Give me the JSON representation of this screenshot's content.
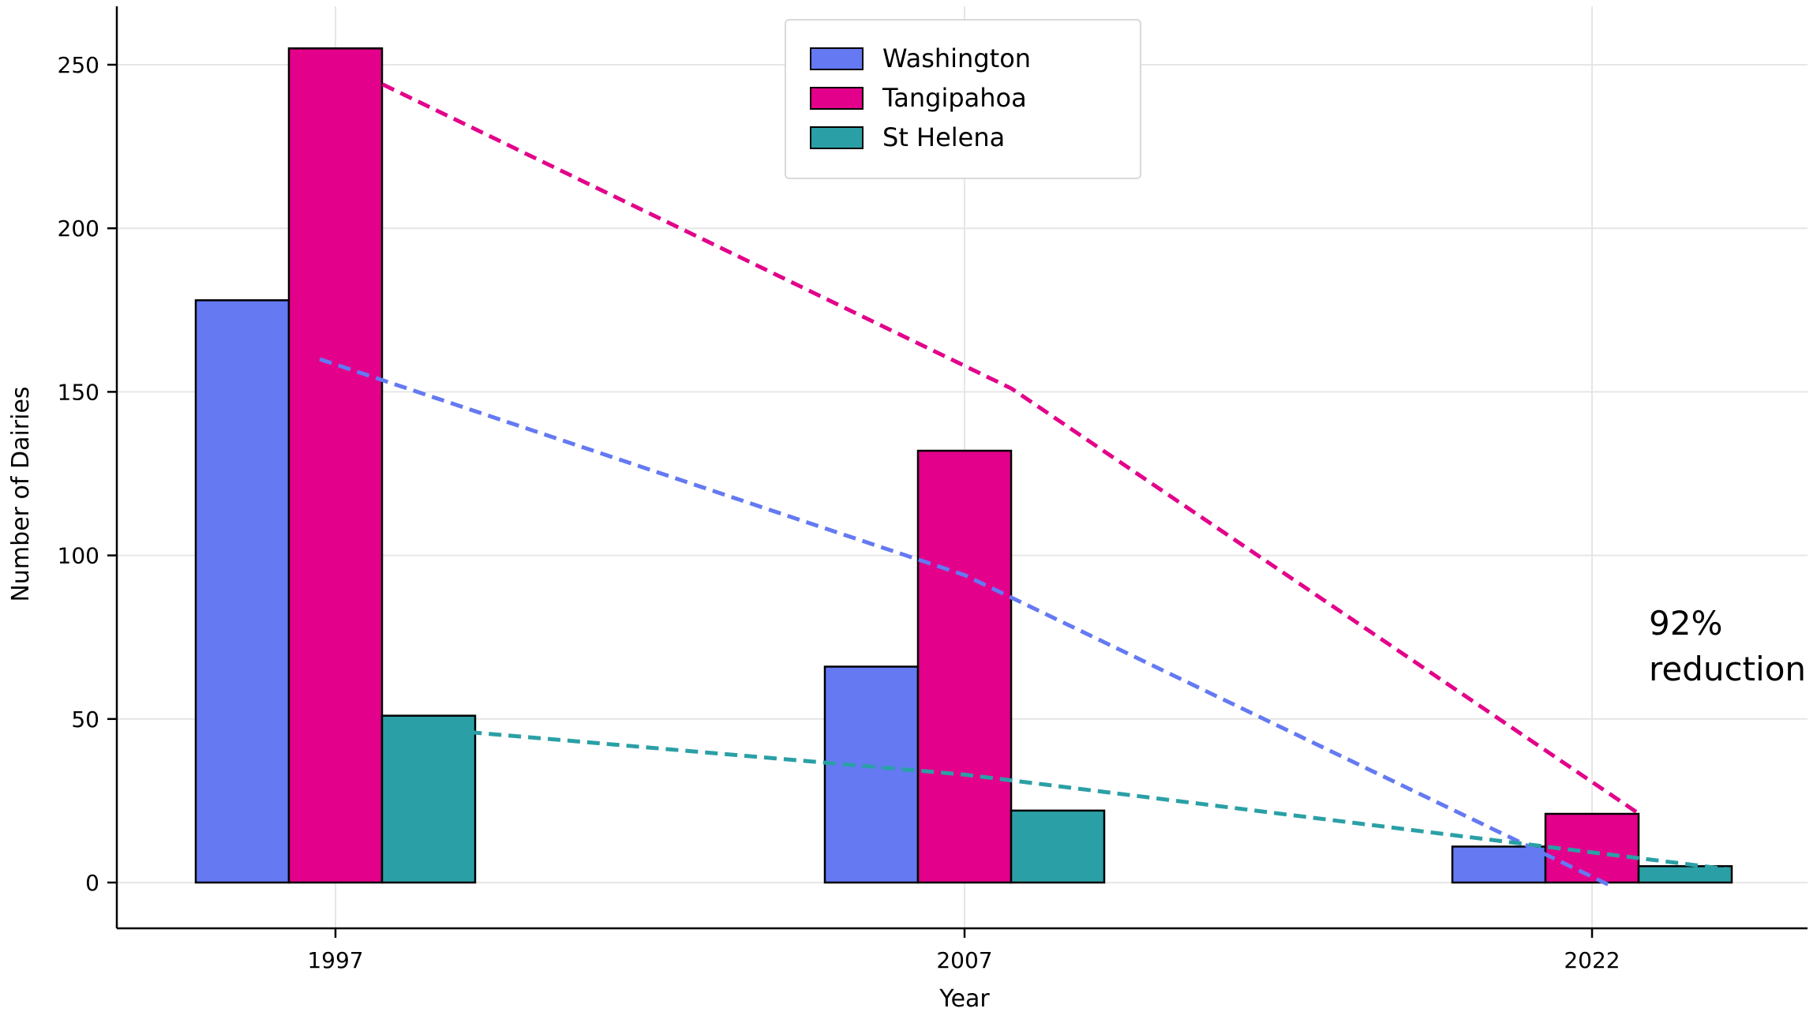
{
  "chart_data": {
    "type": "bar",
    "title": "",
    "xlabel": "Year",
    "ylabel": "Number of Dairies",
    "categories": [
      "1997",
      "2007",
      "2022"
    ],
    "ylim": [
      -28,
      265
    ],
    "yticks": [
      0,
      50,
      100,
      150,
      200,
      250
    ],
    "grid": true,
    "legend_position": "top-center",
    "series": [
      {
        "name": "Washington",
        "color": "#6479f2",
        "values": [
          178,
          66,
          11
        ]
      },
      {
        "name": "Tangipahoa",
        "color": "#e3008a",
        "values": [
          255,
          132,
          21
        ]
      },
      {
        "name": "St Helena",
        "color": "#2aa0a6",
        "values": [
          51,
          22,
          5
        ]
      }
    ],
    "trend_lines": [
      {
        "series": "Tangipahoa",
        "color": "#e3008a",
        "points": [
          [
            1997.75,
            244
          ],
          [
            2007.75,
            151
          ],
          [
            2017.75,
            21
          ]
        ]
      },
      {
        "series": "Washington",
        "color": "#6479f2",
        "points": [
          [
            1996.75,
            160
          ],
          [
            2007.0,
            94
          ],
          [
            2017.3,
            -1
          ]
        ]
      },
      {
        "series": "St Helena",
        "color": "#2aa0a6",
        "points": [
          [
            1998.5,
            47
          ],
          [
            2007.0,
            33
          ],
          [
            2019.2,
            4
          ]
        ]
      }
    ],
    "annotation": {
      "text_line1": "92%",
      "text_line2": "reduction",
      "x": 2018,
      "y": 65
    }
  }
}
